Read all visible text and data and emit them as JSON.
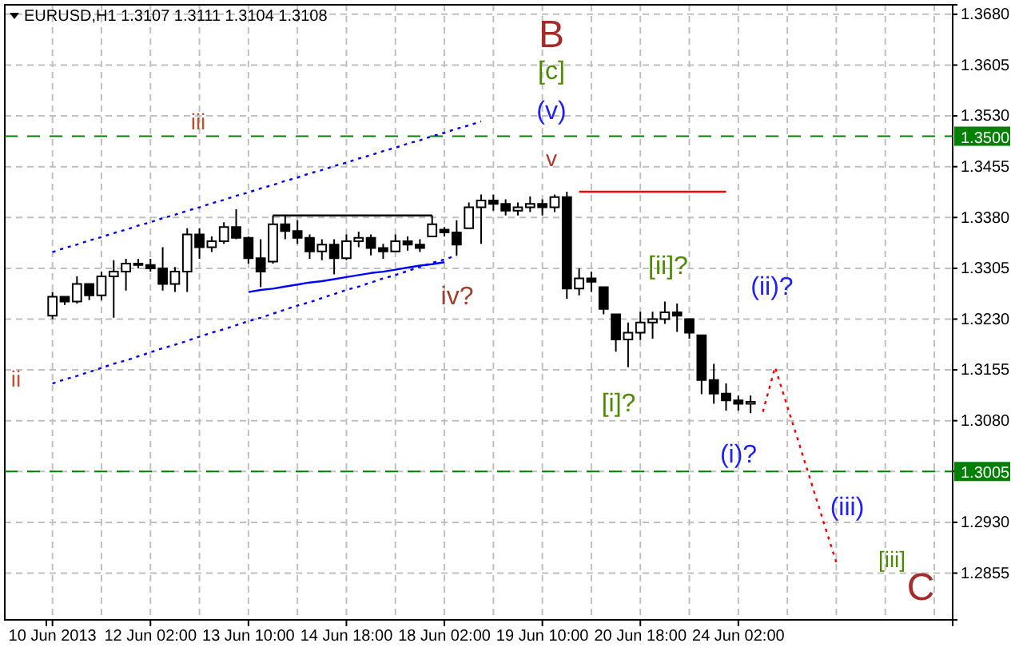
{
  "chart_data": {
    "type": "candlestick",
    "title": "EURUSD,H1  1.3107 1.3111 1.3104 1.3108",
    "categories": [
      "10 Jun 2013",
      null,
      null,
      null,
      null,
      null,
      null,
      null,
      "12 Jun 02:00",
      null,
      null,
      null,
      null,
      null,
      null,
      null,
      "13 Jun 10:00",
      null,
      null,
      null,
      null,
      null,
      null,
      null,
      "14 Jun 18:00",
      null,
      null,
      null,
      null,
      null,
      null,
      null,
      "18 Jun 02:00",
      null,
      null,
      null,
      null,
      null,
      null,
      null,
      "19 Jun 10:00",
      null,
      null,
      null,
      null,
      null,
      null,
      null,
      "20 Jun 18:00",
      null,
      null,
      null,
      null,
      null,
      null,
      null,
      "24 Jun 02:00",
      null,
      null,
      null,
      null,
      null,
      null,
      null,
      null,
      null,
      null,
      null,
      null,
      null,
      null,
      null,
      null,
      null
    ],
    "ohlc": [
      [
        1.3235,
        1.327,
        1.323,
        1.3263
      ],
      [
        1.3263,
        1.3263,
        1.3251,
        1.3256
      ],
      [
        1.3256,
        1.3293,
        1.3253,
        1.3282
      ],
      [
        1.3282,
        1.3282,
        1.3258,
        1.3265
      ],
      [
        1.3265,
        1.33,
        1.3258,
        1.3293
      ],
      [
        1.3293,
        1.3317,
        1.3232,
        1.33
      ],
      [
        1.33,
        1.3319,
        1.3272,
        1.3312
      ],
      [
        1.3312,
        1.3319,
        1.3305,
        1.331
      ],
      [
        1.331,
        1.3319,
        1.33,
        1.3305
      ],
      [
        1.3305,
        1.3336,
        1.3272,
        1.3282
      ],
      [
        1.3282,
        1.3307,
        1.327,
        1.33
      ],
      [
        1.33,
        1.3364,
        1.327,
        1.3355
      ],
      [
        1.3355,
        1.3364,
        1.3319,
        1.3336
      ],
      [
        1.3336,
        1.3352,
        1.3329,
        1.3345
      ],
      [
        1.3345,
        1.3373,
        1.3341,
        1.3366
      ],
      [
        1.3366,
        1.3392,
        1.3348,
        1.335
      ],
      [
        1.335,
        1.3352,
        1.3312,
        1.332
      ],
      [
        1.332,
        1.3348,
        1.3277,
        1.33
      ],
      [
        1.3315,
        1.3383,
        1.3312,
        1.337
      ],
      [
        1.337,
        1.3383,
        1.3348,
        1.336
      ],
      [
        1.336,
        1.3376,
        1.3341,
        1.335
      ],
      [
        1.335,
        1.3355,
        1.3319,
        1.333
      ],
      [
        1.333,
        1.3348,
        1.3317,
        1.334
      ],
      [
        1.334,
        1.3348,
        1.3296,
        1.332
      ],
      [
        1.332,
        1.3355,
        1.3317,
        1.3345
      ],
      [
        1.3345,
        1.3359,
        1.3336,
        1.335
      ],
      [
        1.335,
        1.3355,
        1.3324,
        1.3335
      ],
      [
        1.3335,
        1.3341,
        1.3319,
        1.333
      ],
      [
        1.333,
        1.3355,
        1.3329,
        1.3345
      ],
      [
        1.3345,
        1.3352,
        1.3331,
        1.334
      ],
      [
        1.334,
        1.3348,
        1.3329,
        1.3335
      ],
      [
        1.3352,
        1.3383,
        1.3352,
        1.337
      ],
      [
        1.3362,
        1.3366,
        1.3352,
        1.3358
      ],
      [
        1.3358,
        1.3376,
        1.3324,
        1.334
      ],
      [
        1.3364,
        1.3402,
        1.3364,
        1.3395
      ],
      [
        1.3395,
        1.3414,
        1.3341,
        1.3405
      ],
      [
        1.3405,
        1.3414,
        1.339,
        1.34
      ],
      [
        1.34,
        1.3407,
        1.3383,
        1.339
      ],
      [
        1.339,
        1.3402,
        1.3383,
        1.3395
      ],
      [
        1.3395,
        1.3411,
        1.3388,
        1.34
      ],
      [
        1.34,
        1.3407,
        1.3383,
        1.3395
      ],
      [
        1.3395,
        1.3414,
        1.3388,
        1.341
      ],
      [
        1.341,
        1.3418,
        1.326,
        1.3275
      ],
      [
        1.3275,
        1.3305,
        1.3265,
        1.329
      ],
      [
        1.329,
        1.33,
        1.327,
        1.3285
      ],
      [
        1.3277,
        1.3277,
        1.3237,
        1.3245
      ],
      [
        1.3237,
        1.3237,
        1.3182,
        1.32
      ],
      [
        1.32,
        1.3225,
        1.3159,
        1.321
      ],
      [
        1.321,
        1.3241,
        1.3199,
        1.3225
      ],
      [
        1.3225,
        1.3241,
        1.3201,
        1.323
      ],
      [
        1.323,
        1.3256,
        1.3223,
        1.324
      ],
      [
        1.324,
        1.3253,
        1.3211,
        1.3235
      ],
      [
        1.323,
        1.323,
        1.3201,
        1.321
      ],
      [
        1.3206,
        1.3206,
        1.3119,
        1.314
      ],
      [
        1.314,
        1.3164,
        1.3105,
        1.312
      ],
      [
        1.312,
        1.3135,
        1.3095,
        1.311
      ],
      [
        1.311,
        1.3117,
        1.3095,
        1.3105
      ],
      [
        1.3105,
        1.3117,
        1.3091,
        1.3108
      ],
      null,
      null,
      null,
      null,
      null,
      null,
      null,
      null,
      null,
      null,
      null,
      null,
      null,
      null,
      null,
      null
    ],
    "series": [
      {
        "type": "line",
        "color": "#0000ff",
        "line_style": "dotted",
        "values": [
          1.3329,
          1.3335,
          1.334,
          1.3346,
          1.3351,
          1.3357,
          1.3362,
          1.3368,
          1.3373,
          1.3379,
          1.3384,
          1.339,
          1.3395,
          1.3401,
          1.3406,
          1.3412,
          1.3417,
          1.3423,
          1.3428,
          1.3434,
          1.3439,
          1.3445,
          1.345,
          1.3456,
          1.3461,
          1.3467,
          1.3472,
          1.3478,
          1.3483,
          1.3489,
          1.3494,
          1.35,
          1.3505,
          1.3511,
          1.3516,
          1.3522,
          null,
          null,
          null,
          null,
          null,
          null,
          null,
          null,
          null,
          null,
          null,
          null,
          null,
          null,
          null,
          null,
          null,
          null,
          null,
          null,
          null,
          null,
          null,
          null,
          null,
          null,
          null,
          null,
          null,
          null,
          null,
          null,
          null,
          null,
          null,
          null,
          null,
          null
        ]
      },
      {
        "type": "line",
        "color": "#0000ff",
        "line_style": "dotted",
        "values": [
          1.3135,
          1.3141,
          1.3146,
          1.3152,
          1.3158,
          1.3164,
          1.3169,
          1.3175,
          1.3181,
          1.3187,
          1.3192,
          1.3198,
          1.3204,
          1.321,
          1.3215,
          1.3221,
          1.3227,
          1.3232,
          1.3238,
          1.3244,
          1.325,
          1.3255,
          1.3261,
          1.3267,
          1.3273,
          1.3278,
          1.3284,
          1.329,
          1.3295,
          1.3301,
          1.3307,
          1.3313,
          1.3318,
          1.3324,
          null,
          null,
          null,
          null,
          null,
          null,
          null,
          null,
          null,
          null,
          null,
          null,
          null,
          null,
          null,
          null,
          null,
          null,
          null,
          null,
          null,
          null,
          null,
          null,
          null,
          null,
          null,
          null,
          null,
          null,
          null,
          null,
          null,
          null,
          null,
          null,
          null,
          null,
          null,
          null
        ]
      },
      {
        "type": "line",
        "color": "#000000",
        "line_style": "solid",
        "values": [
          null,
          null,
          null,
          null,
          null,
          null,
          null,
          null,
          null,
          null,
          null,
          null,
          null,
          null,
          null,
          null,
          null,
          null,
          1.3383,
          1.3383,
          1.3383,
          1.3383,
          1.3383,
          1.3383,
          1.3383,
          1.3383,
          1.3383,
          1.3383,
          1.3383,
          1.3383,
          1.3383,
          1.3383,
          null,
          null,
          null,
          null,
          null,
          null,
          null,
          null,
          null,
          null,
          null,
          null,
          null,
          null,
          null,
          null,
          null,
          null,
          null,
          null,
          null,
          null,
          null,
          null,
          null,
          null,
          null,
          null,
          null,
          null,
          null,
          null,
          null,
          null,
          null,
          null,
          null,
          null,
          null,
          null,
          null,
          null
        ]
      },
      {
        "type": "line",
        "color": "#0000ff",
        "line_style": "solid",
        "values": [
          null,
          null,
          null,
          null,
          null,
          null,
          null,
          null,
          null,
          null,
          null,
          null,
          null,
          null,
          null,
          null,
          1.327,
          1.3273,
          1.3275,
          1.3278,
          1.3281,
          1.3284,
          1.3286,
          1.3289,
          1.3292,
          1.3295,
          1.3298,
          1.33,
          1.3303,
          1.3306,
          1.3309,
          1.3311,
          1.3314,
          null,
          null,
          null,
          null,
          null,
          null,
          null,
          null,
          null,
          null,
          null,
          null,
          null,
          null,
          null,
          null,
          null,
          null,
          null,
          null,
          null,
          null,
          null,
          null,
          null,
          null,
          null,
          null,
          null,
          null,
          null,
          null,
          null,
          null,
          null,
          null,
          null,
          null,
          null,
          null,
          null
        ]
      },
      {
        "type": "line",
        "color": "#ff0000",
        "line_style": "solid",
        "values": [
          null,
          null,
          null,
          null,
          null,
          null,
          null,
          null,
          null,
          null,
          null,
          null,
          null,
          null,
          null,
          null,
          null,
          null,
          null,
          null,
          null,
          null,
          null,
          null,
          null,
          null,
          null,
          null,
          null,
          null,
          null,
          null,
          null,
          null,
          null,
          null,
          null,
          null,
          null,
          null,
          null,
          null,
          null,
          1.3418,
          1.3418,
          1.3418,
          1.3418,
          1.3418,
          1.3418,
          1.3418,
          1.3418,
          1.3418,
          1.3418,
          1.3418,
          1.3418,
          1.3418,
          null,
          null,
          null,
          null,
          null,
          null,
          null,
          null,
          null,
          null,
          null,
          null,
          null,
          null,
          null,
          null,
          null,
          null
        ]
      },
      {
        "type": "line",
        "color": "#ff0000",
        "line_style": "dotted",
        "values": [
          null,
          null,
          null,
          null,
          null,
          null,
          null,
          null,
          null,
          null,
          null,
          null,
          null,
          null,
          null,
          null,
          null,
          null,
          null,
          null,
          null,
          null,
          null,
          null,
          null,
          null,
          null,
          null,
          null,
          null,
          null,
          null,
          null,
          null,
          null,
          null,
          null,
          null,
          null,
          null,
          null,
          null,
          null,
          null,
          null,
          null,
          null,
          null,
          null,
          null,
          null,
          null,
          null,
          null,
          null,
          null,
          null,
          null,
          1.3093,
          1.3159,
          1.3101,
          1.3044,
          1.2986,
          1.2928,
          1.2871,
          null,
          null,
          null,
          null,
          null,
          null,
          null,
          null,
          null
        ]
      }
    ],
    "ylim": [
      1.2786,
      1.3694
    ],
    "yticks": [
      {
        "value": 1.2855,
        "label": "1.2855"
      },
      {
        "value": 1.293,
        "label": "1.2930"
      },
      {
        "value": 1.3005,
        "label": "1.3005"
      },
      {
        "value": 1.308,
        "label": "1.3080"
      },
      {
        "value": 1.3155,
        "label": "1.3155"
      },
      {
        "value": 1.323,
        "label": "1.3230"
      },
      {
        "value": 1.3305,
        "label": "1.3305"
      },
      {
        "value": 1.338,
        "label": "1.3380"
      },
      {
        "value": 1.3455,
        "label": "1.3455"
      },
      {
        "value": 1.353,
        "label": "1.3530"
      },
      {
        "value": 1.3605,
        "label": "1.3605"
      },
      {
        "value": 1.368,
        "label": "1.3680"
      }
    ],
    "grid": true,
    "ref_lines": [
      {
        "axis": "y",
        "value": 1.35,
        "label": "1.3500",
        "color": "#008000",
        "line_style": "dashed"
      },
      {
        "axis": "y",
        "value": 1.3005,
        "label": "1.3005",
        "color": "#008000",
        "line_style": "dashed"
      }
    ],
    "annotations": [
      "B",
      "[c]",
      "(v)",
      "v",
      "iii",
      "ii",
      "iv?",
      "[ii]?",
      "[i]?",
      "(ii)?",
      "(i)?",
      "(iii)",
      "[iii]",
      "C"
    ]
  }
}
